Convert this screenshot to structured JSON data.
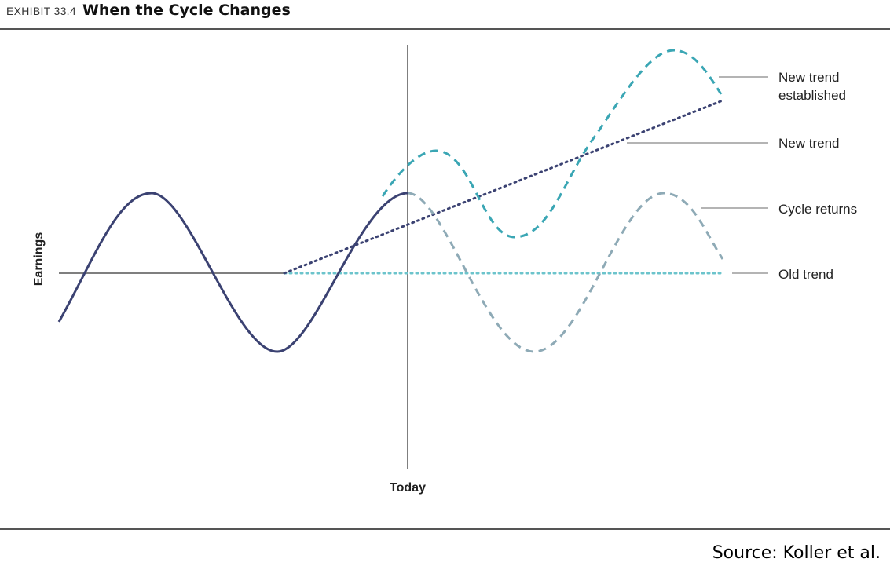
{
  "header": {
    "exhibit": "EXHIBIT 33.4",
    "title": "When the Cycle Changes"
  },
  "axis": {
    "y_label": "Earnings",
    "x_marker": "Today"
  },
  "legend": {
    "new_trend_established_line1": "New trend",
    "new_trend_established_line2": "established",
    "new_trend": "New trend",
    "cycle_returns": "Cycle returns",
    "old_trend": "Old trend"
  },
  "source": "Source: Koller et al.",
  "colors": {
    "dark_navy": "#3b4272",
    "teal": "#3aa6b4",
    "gray_blue": "#8eaab6",
    "light_teal": "#6cc4cc",
    "axis": "#555555"
  }
}
